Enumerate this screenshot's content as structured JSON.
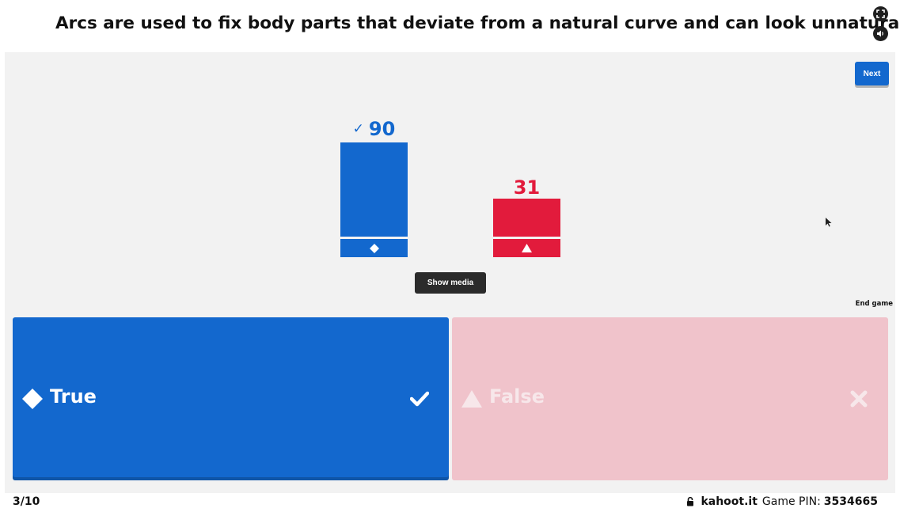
{
  "header": {
    "question": "Arcs are used to fix body parts that deviate from a natural curve and can look unnatural"
  },
  "controls": {
    "next_label": "Next",
    "show_media_label": "Show media",
    "end_game_label": "End game"
  },
  "results": {
    "correct_check": "✓",
    "true_count": "90",
    "false_count": "31",
    "true_count_value": 90,
    "false_count_value": 31,
    "colors": {
      "true": "#1368ce",
      "false": "#e21b3c"
    }
  },
  "answers": [
    {
      "label": "True",
      "shape": "diamond-icon",
      "status": "correct"
    },
    {
      "label": "False",
      "shape": "triangle-icon",
      "status": "incorrect"
    }
  ],
  "footer": {
    "progress": "3/10",
    "domain": "kahoot.it",
    "pin_label": "Game PIN:",
    "pin": "3534665"
  }
}
